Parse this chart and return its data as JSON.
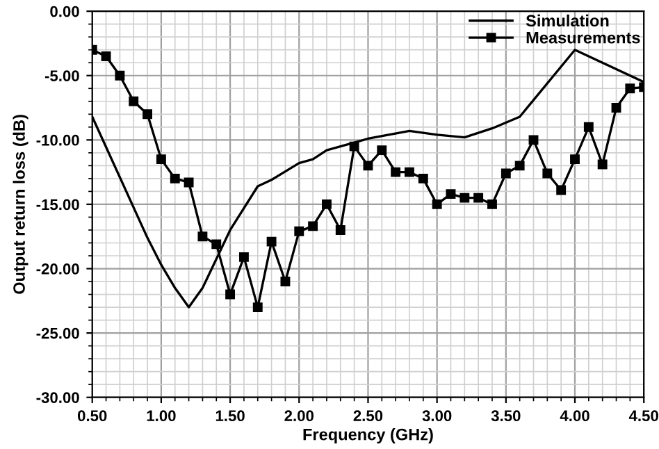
{
  "chart_data": {
    "type": "line",
    "xlabel": "Frequency (GHz)",
    "ylabel": "Output return loss (dB)",
    "xlim": [
      0.5,
      4.5
    ],
    "ylim": [
      -30,
      0
    ],
    "xticks": [
      {
        "value": 0.5,
        "label": "0.50"
      },
      {
        "value": 1.0,
        "label": "1.00"
      },
      {
        "value": 1.5,
        "label": "1.50"
      },
      {
        "value": 2.0,
        "label": "2.00"
      },
      {
        "value": 2.5,
        "label": "2.50"
      },
      {
        "value": 3.0,
        "label": "3.00"
      },
      {
        "value": 3.5,
        "label": "3.50"
      },
      {
        "value": 4.0,
        "label": "4.00"
      },
      {
        "value": 4.5,
        "label": "4.50"
      }
    ],
    "yticks": [
      {
        "value": 0,
        "label": "0.00"
      },
      {
        "value": -5,
        "label": "-5.00"
      },
      {
        "value": -10,
        "label": "-10.00"
      },
      {
        "value": -15,
        "label": "-15.00"
      },
      {
        "value": -20,
        "label": "-20.00"
      },
      {
        "value": -25,
        "label": "-25.00"
      },
      {
        "value": -30,
        "label": "-30.00"
      }
    ],
    "grid": true,
    "legend": "top right",
    "series": [
      {
        "name": "Simulation",
        "color": "#000000",
        "marker": "none",
        "x": [
          0.5,
          0.9,
          1.0,
          1.1,
          1.2,
          1.3,
          1.5,
          1.7,
          1.8,
          2.0,
          2.1,
          2.2,
          2.4,
          2.5,
          2.8,
          3.0,
          3.2,
          3.4,
          3.6,
          4.0,
          4.5
        ],
        "values": [
          -8.2,
          -17.6,
          -19.7,
          -21.5,
          -23,
          -21.5,
          -17,
          -13.6,
          -13.1,
          -11.8,
          -11.5,
          -10.8,
          -10.2,
          -9.9,
          -9.3,
          -9.6,
          -9.8,
          -9.1,
          -8.2,
          -3.0,
          -5.5
        ]
      },
      {
        "name": "Measurements",
        "color": "#000000",
        "marker": "square",
        "x": [
          0.5,
          0.6,
          0.7,
          0.8,
          0.9,
          1.0,
          1.1,
          1.2,
          1.3,
          1.4,
          1.5,
          1.6,
          1.7,
          1.8,
          1.9,
          2.0,
          2.1,
          2.2,
          2.3,
          2.4,
          2.5,
          2.6,
          2.7,
          2.8,
          2.9,
          3.0,
          3.1,
          3.2,
          3.3,
          3.4,
          3.5,
          3.6,
          3.7,
          3.8,
          3.9,
          4.0,
          4.1,
          4.2,
          4.3,
          4.4,
          4.5
        ],
        "values": [
          -3,
          -3.5,
          -5,
          -7,
          -8,
          -11.5,
          -13,
          -13.3,
          -17.5,
          -18.1,
          -22,
          -19.1,
          -23,
          -17.9,
          -21,
          -17.1,
          -16.7,
          -15,
          -17,
          -10.5,
          -12,
          -10.8,
          -12.5,
          -12.5,
          -13,
          -15,
          -14.2,
          -14.5,
          -14.5,
          -15,
          -12.6,
          -12,
          -10,
          -12.6,
          -13.9,
          -11.5,
          -9,
          -11.9,
          -7.5,
          -6,
          -5.9
        ]
      }
    ]
  }
}
